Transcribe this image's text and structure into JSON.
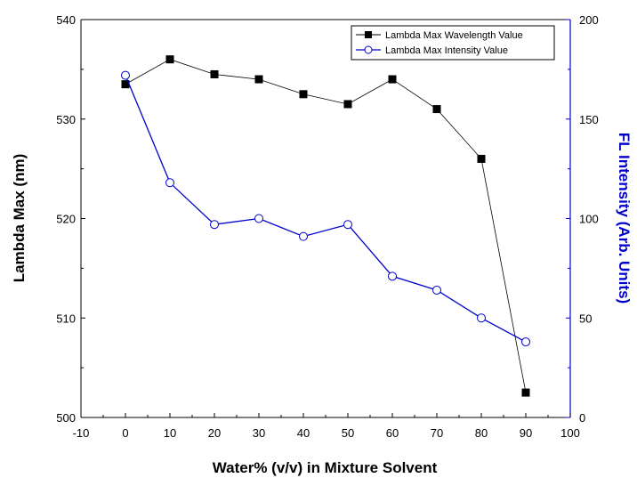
{
  "chart_data": {
    "type": "line",
    "title": "",
    "xlabel": "Water% (v/v) in Mixture Solvent",
    "ylabel": "Lambda Max (nm)",
    "y2label": "FL Intensity (Arb. Units)",
    "xlim": [
      -10,
      100
    ],
    "ylim": [
      500,
      540
    ],
    "y2lim": [
      0,
      200
    ],
    "xticks": [
      "-10",
      "0",
      "10",
      "20",
      "30",
      "40",
      "50",
      "60",
      "70",
      "80",
      "90",
      "100"
    ],
    "yticks": [
      "500",
      "510",
      "520",
      "530",
      "540"
    ],
    "y2ticks": [
      "0",
      "50",
      "100",
      "150",
      "200"
    ],
    "grid": false,
    "legend_position": "top-right",
    "x": [
      0,
      10,
      20,
      30,
      40,
      50,
      60,
      70,
      80,
      90
    ],
    "series": [
      {
        "name": "Lambda Max Wavelength Value",
        "axis": "left",
        "color": "#000000",
        "marker": "filled-square",
        "values": [
          533.5,
          536,
          534.5,
          534,
          532.5,
          531.5,
          534,
          531,
          526,
          502.5
        ]
      },
      {
        "name": "Lambda Max Intensity Value",
        "axis": "right",
        "color": "#0000cc",
        "marker": "open-circle",
        "values": [
          172,
          118,
          97,
          100,
          91,
          97,
          71,
          64,
          50,
          38
        ]
      }
    ]
  },
  "colors": {
    "left_axis": "#000000",
    "right_axis": "#0000cc"
  }
}
